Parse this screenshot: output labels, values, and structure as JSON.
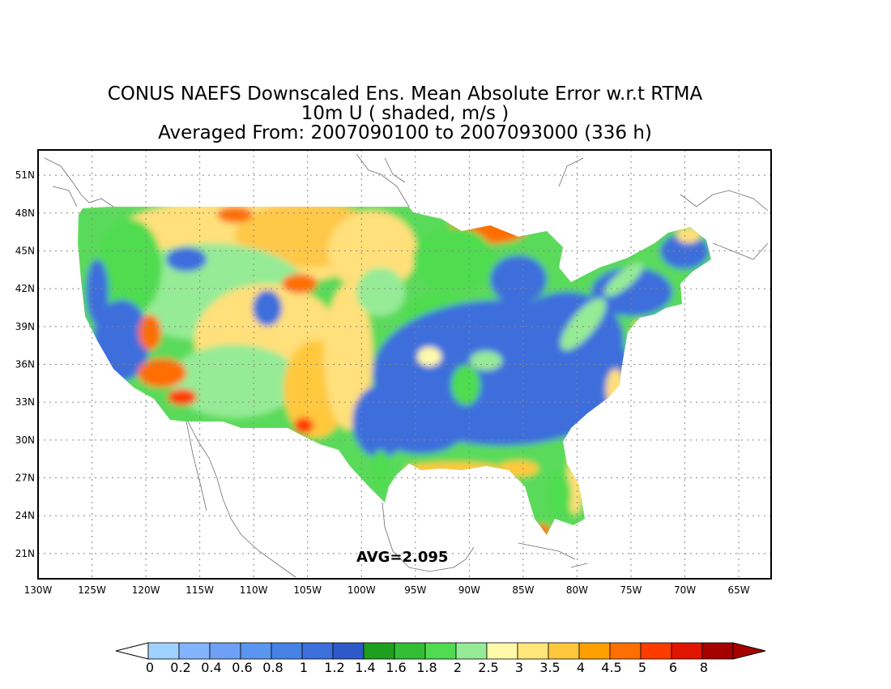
{
  "title": {
    "line1": "CONUS NAEFS Downscaled Ens. Mean Absolute Error w.r.t RTMA",
    "line2": "10m U ( shaded, m/s )",
    "line3": "Averaged From: 2007090100 to 2007093000 (336 h)"
  },
  "map": {
    "region": "CONUS",
    "lon_range": [
      -130,
      -62
    ],
    "lat_range": [
      19,
      53
    ],
    "lat_ticks": [
      "21N",
      "24N",
      "27N",
      "30N",
      "33N",
      "36N",
      "39N",
      "42N",
      "45N",
      "48N",
      "51N"
    ],
    "lon_ticks": [
      "130W",
      "125W",
      "120W",
      "115W",
      "110W",
      "105W",
      "100W",
      "95W",
      "90W",
      "85W",
      "80W",
      "75W",
      "70W",
      "65W"
    ],
    "gridlines": "dotted",
    "average_label": "AVG=2.095"
  },
  "colorbar": {
    "labels": [
      "0",
      "0.2",
      "0.4",
      "0.6",
      "0.8",
      "1",
      "1.2",
      "1.4",
      "1.6",
      "1.8",
      "2",
      "2.5",
      "3",
      "3.5",
      "4",
      "4.5",
      "5",
      "6",
      "8"
    ],
    "colors": [
      "#a0d2ff",
      "#82b4ff",
      "#6ea0f5",
      "#5a96f0",
      "#4682e6",
      "#3c6edc",
      "#2d5ac8",
      "#1ea01e",
      "#32be32",
      "#50dc50",
      "#96eb96",
      "#fffaaa",
      "#ffe678",
      "#ffc83c",
      "#ffa000",
      "#ff6e00",
      "#ff3c00",
      "#e11400",
      "#a50000"
    ],
    "under_color": "#ffffff",
    "over_color": "#a50000"
  }
}
